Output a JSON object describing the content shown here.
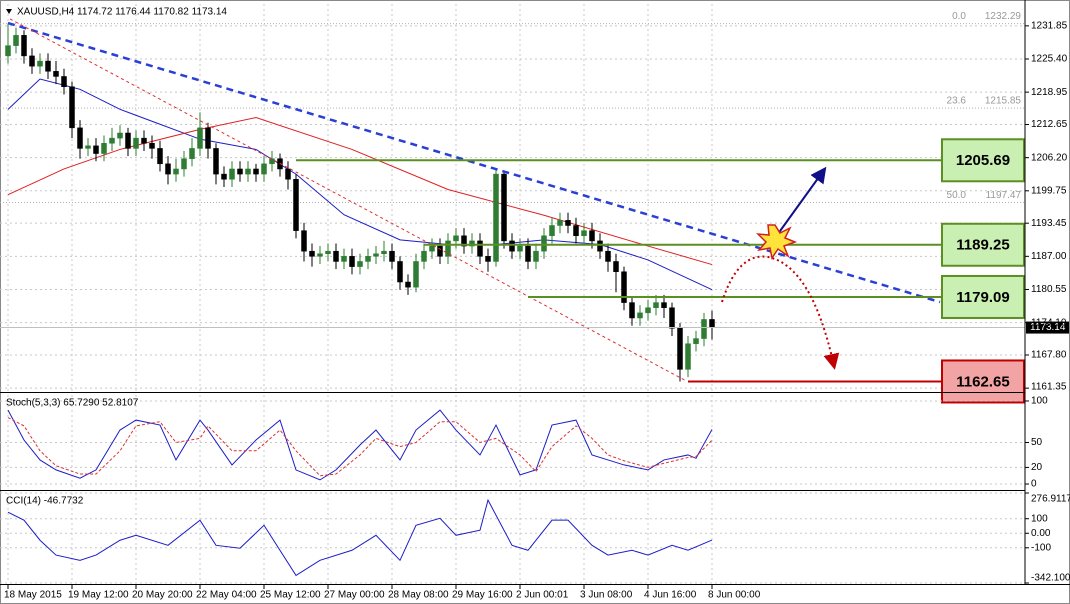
{
  "chart_data": [
    {
      "type": "candlestick",
      "header": "XAUUSD,H4  1174.72 1176.44 1170.82 1173.14",
      "xlim": [
        -1,
        127.125
      ],
      "x_labels": [
        {
          "value": 0,
          "label": "18 May 2015"
        },
        {
          "value": 8,
          "label": "19 May 12:00"
        },
        {
          "value": 16,
          "label": "20 May 20:00"
        },
        {
          "value": 24,
          "label": "22 May 04:00"
        },
        {
          "value": 32,
          "label": "25 May 12:00"
        },
        {
          "value": 40,
          "label": "27 May 00:00"
        },
        {
          "value": 48,
          "label": "28 May 08:00"
        },
        {
          "value": 56,
          "label": "29 May 16:00"
        },
        {
          "value": 64,
          "label": "2 Jun 00:01"
        },
        {
          "value": 72,
          "label": "3 Jun 08:00"
        },
        {
          "value": 80,
          "label": "4 Jun 16:00"
        },
        {
          "value": 88,
          "label": "8 Jun 00:00"
        }
      ],
      "open": [
        1226,
        1228,
        1230,
        1226,
        1224,
        1225,
        1223,
        1222,
        1220,
        1212,
        1208,
        1208.5,
        1207,
        1209,
        1210,
        1211,
        1208,
        1210,
        1209,
        1208,
        1205,
        1203,
        1204,
        1206,
        1208,
        1212,
        1208,
        1203,
        1202,
        1204,
        1203,
        1204,
        1203,
        1205,
        1206,
        1204,
        1202,
        1192,
        1188,
        1187,
        1187.5,
        1188,
        1186,
        1187,
        1185,
        1186,
        1187,
        1187.5,
        1188,
        1186,
        1182,
        1181,
        1186,
        1188,
        1189,
        1187,
        1190,
        1191,
        1189,
        1190,
        1187,
        1186,
        1203,
        1190,
        1188,
        1189,
        1186,
        1188,
        1191,
        1193,
        1194,
        1193,
        1191,
        1192,
        1190,
        1188,
        1186,
        1184,
        1178,
        1175,
        1176,
        1177,
        1178,
        1177,
        1173,
        1165,
        1170,
        1171,
        1174.72
      ],
      "high": [
        1232.3,
        1231.5,
        1231,
        1227.5,
        1226.5,
        1226.5,
        1225,
        1223.5,
        1221,
        1213.5,
        1210,
        1210,
        1210.5,
        1212,
        1212.5,
        1212,
        1211.5,
        1211.5,
        1210.5,
        1209.5,
        1206.5,
        1206,
        1207.5,
        1210,
        1215,
        1213,
        1209,
        1204.5,
        1205.5,
        1205.5,
        1205.5,
        1205,
        1206.5,
        1207.5,
        1207,
        1205.5,
        1203,
        1193.5,
        1189.5,
        1189,
        1189.5,
        1189.5,
        1188.5,
        1188.5,
        1187.5,
        1188.5,
        1189,
        1190,
        1189.5,
        1187,
        1183.5,
        1187.5,
        1189.5,
        1190.5,
        1190.5,
        1191.5,
        1192.5,
        1192.5,
        1191.5,
        1191.5,
        1188.5,
        1204,
        1203.5,
        1191.5,
        1190.5,
        1190.5,
        1189.5,
        1192.5,
        1194.5,
        1195.5,
        1195.5,
        1194.5,
        1193.5,
        1193.5,
        1191.5,
        1189.5,
        1187.5,
        1185,
        1179,
        1177.5,
        1178.5,
        1179.5,
        1179.5,
        1178,
        1174,
        1171.5,
        1172.5,
        1176,
        1176.44
      ],
      "low": [
        1224.5,
        1226.5,
        1224.5,
        1222.5,
        1222.5,
        1221.5,
        1220.5,
        1218.5,
        1210,
        1206,
        1206.5,
        1205.5,
        1205.5,
        1207.5,
        1208.5,
        1206.5,
        1206.5,
        1207.5,
        1206,
        1203.5,
        1201,
        1201.5,
        1202.5,
        1204.5,
        1206.5,
        1206,
        1201,
        1200.5,
        1200.5,
        1201.5,
        1201.5,
        1201.5,
        1201.5,
        1203.5,
        1202.5,
        1200,
        1190.5,
        1186,
        1185,
        1185.5,
        1186,
        1184.5,
        1184.5,
        1183.5,
        1183.5,
        1184.5,
        1185.5,
        1186,
        1184.5,
        1180.5,
        1179.5,
        1180,
        1184.5,
        1186.5,
        1185.5,
        1185.5,
        1188.5,
        1187.5,
        1187.5,
        1185.5,
        1184,
        1185,
        1188.5,
        1186.5,
        1186.5,
        1184.5,
        1184.5,
        1186.5,
        1189.5,
        1191.5,
        1191.5,
        1189.5,
        1189.5,
        1188.5,
        1186.5,
        1184,
        1180,
        1176.5,
        1173.5,
        1173.5,
        1174.5,
        1175.5,
        1175,
        1171.5,
        1162.65,
        1163.5,
        1168.5,
        1169.5,
        1170.82
      ],
      "close": [
        1228,
        1230,
        1226,
        1224,
        1225,
        1223,
        1222,
        1220,
        1212,
        1208,
        1208.5,
        1207,
        1209,
        1210,
        1211,
        1208,
        1210,
        1209,
        1208,
        1205,
        1203,
        1204,
        1206,
        1208,
        1212,
        1208,
        1203,
        1202,
        1204,
        1203,
        1204,
        1203,
        1205,
        1206,
        1204,
        1202,
        1192,
        1188,
        1187,
        1187.5,
        1188,
        1186,
        1187,
        1185,
        1186,
        1187,
        1187.5,
        1188,
        1186,
        1182,
        1181,
        1186,
        1188,
        1189,
        1187,
        1190,
        1191,
        1189,
        1190,
        1187,
        1186,
        1203,
        1190,
        1188,
        1189,
        1186,
        1188,
        1191,
        1193,
        1194,
        1193,
        1191,
        1192,
        1190,
        1188,
        1186,
        1184,
        1178,
        1175,
        1176,
        1177,
        1178,
        1177,
        1173,
        1165,
        1170,
        1171,
        1174.72,
        1173.14
      ],
      "up_color": "#2e7d32",
      "down_color": "#000000",
      "ylim": [
        1160.6,
        1236.1
      ],
      "yticks": [
        1231.85,
        {
          "value": 1225.4,
          "label": "1225.40"
        },
        1218.95,
        1212.65,
        {
          "value": 1206.2,
          "label": "1206.20"
        },
        1199.75,
        1193.45,
        {
          "value": 1187,
          "label": "1187.00"
        },
        1180.55,
        {
          "value": 1174.1,
          "label": "1174.10"
        },
        {
          "value": 1167.8,
          "label": "1167.80"
        },
        1161.35
      ],
      "grid": true,
      "last_price": 1173.14,
      "moving_averages": [
        {
          "color": "#1c1cc8",
          "x": [
            0,
            4,
            9,
            14,
            19,
            24,
            31,
            36,
            42,
            49,
            55,
            61,
            67,
            74,
            80,
            88
          ],
          "values": [
            1215.6,
            1221.5,
            1219.5,
            1215.6,
            1212.7,
            1209.8,
            1207.8,
            1203,
            1195.1,
            1190.2,
            1189.3,
            1189.3,
            1190.2,
            1189.3,
            1186.3,
            1180.5
          ]
        },
        {
          "color": "#e02020",
          "x": [
            0,
            7,
            14,
            24,
            31,
            43,
            55,
            67,
            80,
            88
          ],
          "values": [
            1199,
            1204,
            1207.8,
            1211.7,
            1214,
            1207.8,
            1200,
            1195,
            1189,
            1185.4
          ]
        }
      ],
      "trendlines": [
        {
          "color": "#2a3fd6",
          "dash": "7,5",
          "width": 2.5,
          "x": [
            0,
            116.5
          ],
          "values": [
            1232.4,
            1178.1
          ]
        },
        {
          "color": "#e03030",
          "dash": "3,3",
          "width": 1,
          "x": [
            0.25,
            84.6
          ],
          "values": [
            1233.2,
            1162.9
          ]
        }
      ],
      "levels": [
        {
          "value": 1205.69,
          "start": 36,
          "color": "#5b8f22",
          "fill": "#c9efb2"
        },
        {
          "value": 1189.25,
          "start": 52,
          "color": "#5b8f22",
          "fill": "#c9efb2"
        },
        {
          "value": 1179.09,
          "start": 65,
          "color": "#5b8f22",
          "fill": "#c9efb2"
        },
        {
          "value": 1162.65,
          "start": 85,
          "color": "#c00000",
          "fill": "#f2a3a3"
        }
      ],
      "fib_levels": [
        {
          "level": "0.0",
          "value": 1232.29
        },
        {
          "level": "23.6",
          "value": 1215.85
        },
        {
          "level": "50.0",
          "value": 1197.47
        }
      ]
    },
    {
      "type": "line",
      "title": "Stoch(5,3,3) 65.7290 52.8107",
      "ylim": [
        -6,
        107.2
      ],
      "yticks": [
        0,
        20,
        50,
        100
      ],
      "series": [
        {
          "color": "#1c1cc8",
          "dash": "none",
          "x": [
            0,
            2,
            4,
            6,
            9,
            11,
            14,
            16,
            19,
            21,
            24,
            25,
            28,
            31,
            34,
            36,
            39,
            41,
            44,
            46,
            49,
            51,
            54,
            56,
            59,
            61,
            64,
            66,
            68,
            71,
            73,
            75,
            77,
            80,
            82,
            85,
            86,
            88
          ],
          "values": [
            89,
            53,
            29,
            17,
            7,
            17,
            65,
            77,
            71,
            29,
            77,
            65,
            23,
            53,
            77,
            17,
            5,
            17,
            47,
            65,
            29,
            65,
            89,
            65,
            35,
            71,
            11,
            17,
            71,
            77,
            35,
            29,
            23,
            17,
            29,
            35,
            31,
            65.729
          ]
        },
        {
          "color": "#e03030",
          "dash": "3,2",
          "x": [
            0,
            2,
            4,
            6,
            9,
            11,
            14,
            16,
            19,
            21,
            24,
            25,
            28,
            31,
            34,
            36,
            39,
            41,
            44,
            46,
            49,
            51,
            54,
            56,
            59,
            61,
            64,
            66,
            68,
            71,
            73,
            75,
            77,
            80,
            82,
            85,
            86,
            88
          ],
          "values": [
            80,
            70,
            40,
            22,
            12,
            12,
            40,
            70,
            75,
            50,
            55,
            70,
            40,
            40,
            65,
            40,
            10,
            12,
            35,
            55,
            45,
            50,
            75,
            75,
            50,
            55,
            35,
            15,
            45,
            70,
            55,
            35,
            28,
            20,
            25,
            32,
            33,
            52.8107
          ]
        }
      ]
    },
    {
      "type": "line",
      "title": "CCI(14) -46.7732",
      "ylim": [
        -342.1005,
        276.9117
      ],
      "yticks": [
        276.9117,
        100,
        {
          "value": 0,
          "label": "0.00"
        },
        -100,
        -342.1005
      ],
      "series": [
        {
          "color": "#1c1cc8",
          "dash": "none",
          "x": [
            0,
            2,
            4,
            6,
            9,
            11,
            14,
            16,
            20,
            24,
            26,
            29,
            32,
            36,
            39,
            43,
            46,
            49,
            51,
            54,
            56,
            59,
            60,
            63,
            65,
            68,
            70,
            73,
            75,
            78,
            80,
            83,
            85,
            88
          ],
          "values": [
            145,
            90,
            -48,
            -150,
            -186,
            -150,
            -48,
            -14,
            -83,
            90,
            -83,
            -103,
            55,
            -290,
            -186,
            -117,
            -14,
            -186,
            55,
            103,
            -14,
            21,
            228,
            -83,
            -117,
            90,
            90,
            -83,
            -150,
            -117,
            -150,
            -83,
            -117,
            -46.7732
          ]
        }
      ]
    }
  ]
}
